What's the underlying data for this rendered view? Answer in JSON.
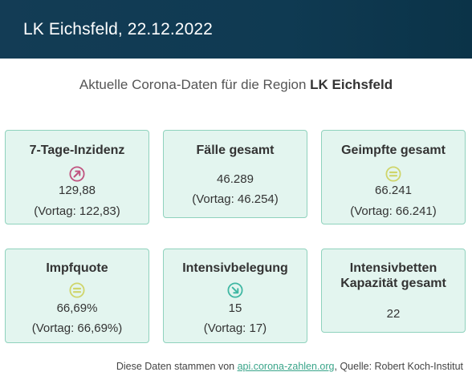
{
  "header": {
    "title": "LK Eichsfeld, 22.12.2022"
  },
  "intro": {
    "prefix": "Aktuelle Corona-Daten für die Region ",
    "region": "LK Eichsfeld"
  },
  "cards": {
    "inzidenz": {
      "title": "7-Tage-Inzidenz",
      "icon": "arrow-up-right-icon",
      "icon_color": "#c0527f",
      "value": "129,88",
      "prev": "(Vortag: 122,83)"
    },
    "faelle": {
      "title": "Fälle gesamt",
      "value": "46.289",
      "prev": "(Vortag: 46.254)"
    },
    "geimpfte": {
      "title": "Geimpfte gesamt",
      "icon": "equals-icon",
      "icon_color": "#cfd56a",
      "value": "66.241",
      "prev": "(Vortag: 66.241)"
    },
    "impfquote": {
      "title": "Impfquote",
      "icon": "equals-icon",
      "icon_color": "#cfd56a",
      "value": "66,69%",
      "prev": "(Vortag: 66,69%)"
    },
    "intensiv": {
      "title": "Intensivbelegung",
      "icon": "arrow-down-right-icon",
      "icon_color": "#3fb7a3",
      "value": "15",
      "prev": "(Vortag: 17)"
    },
    "kapazitaet": {
      "title_line1": "Intensivbetten",
      "title_line2": "Kapazität gesamt",
      "value": "22"
    }
  },
  "footer": {
    "prefix": "Diese Daten stammen von ",
    "link": "api.corona-zahlen.org",
    "suffix": ", Quelle: Robert Koch-Institut"
  },
  "colors": {
    "header_bg": "#133c55",
    "card_bg": "#e3f5ef",
    "card_border": "#8fd2bd",
    "link": "#3aa58a"
  }
}
